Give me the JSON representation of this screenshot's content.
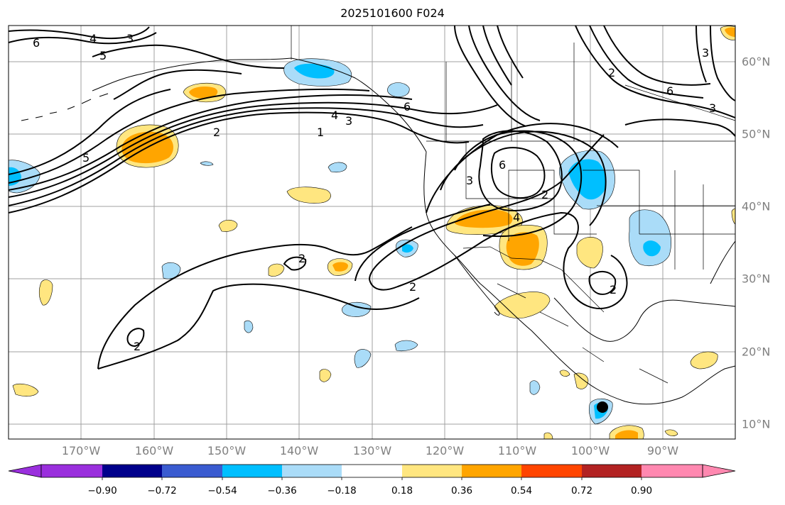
{
  "title": "2025101600 F024",
  "map": {
    "projection": "PlateCarree",
    "extent": {
      "lon_min": -180,
      "lon_max": -80,
      "lat_min": 8,
      "lat_max": 65
    },
    "gridlines": true,
    "coastlines": true,
    "borders": true,
    "states": true
  },
  "lon_labels": [
    "170°W",
    "160°W",
    "150°W",
    "140°W",
    "130°W",
    "120°W",
    "110°W",
    "100°W",
    "90°W"
  ],
  "lat_labels": [
    "60°N",
    "50°N",
    "40°N",
    "30°N",
    "20°N",
    "10°N"
  ],
  "contour_labels": [
    "6",
    "4",
    "5",
    "3",
    "6",
    "4",
    "3",
    "2",
    "1",
    "5",
    "6",
    "3",
    "6",
    "2",
    "3",
    "2",
    "4",
    "2",
    "2",
    "2",
    "2",
    "3"
  ],
  "colorbar": {
    "extend": "both",
    "colors": [
      "#9a2fdd",
      "#00008b",
      "#3a5bd0",
      "#00bfff",
      "#aadcf8",
      "#ffffff",
      "#ffe680",
      "#ffa500",
      "#ff4500",
      "#b22222",
      "#ff88b0"
    ],
    "ticks": [
      "−0.90",
      "−0.72",
      "−0.54",
      "−0.36",
      "−0.18",
      "0.18",
      "0.36",
      "0.54",
      "0.72",
      "0.90"
    ]
  },
  "colors": {
    "grid": "#a0a0a0",
    "contour": "#000000",
    "label": "#808080"
  }
}
